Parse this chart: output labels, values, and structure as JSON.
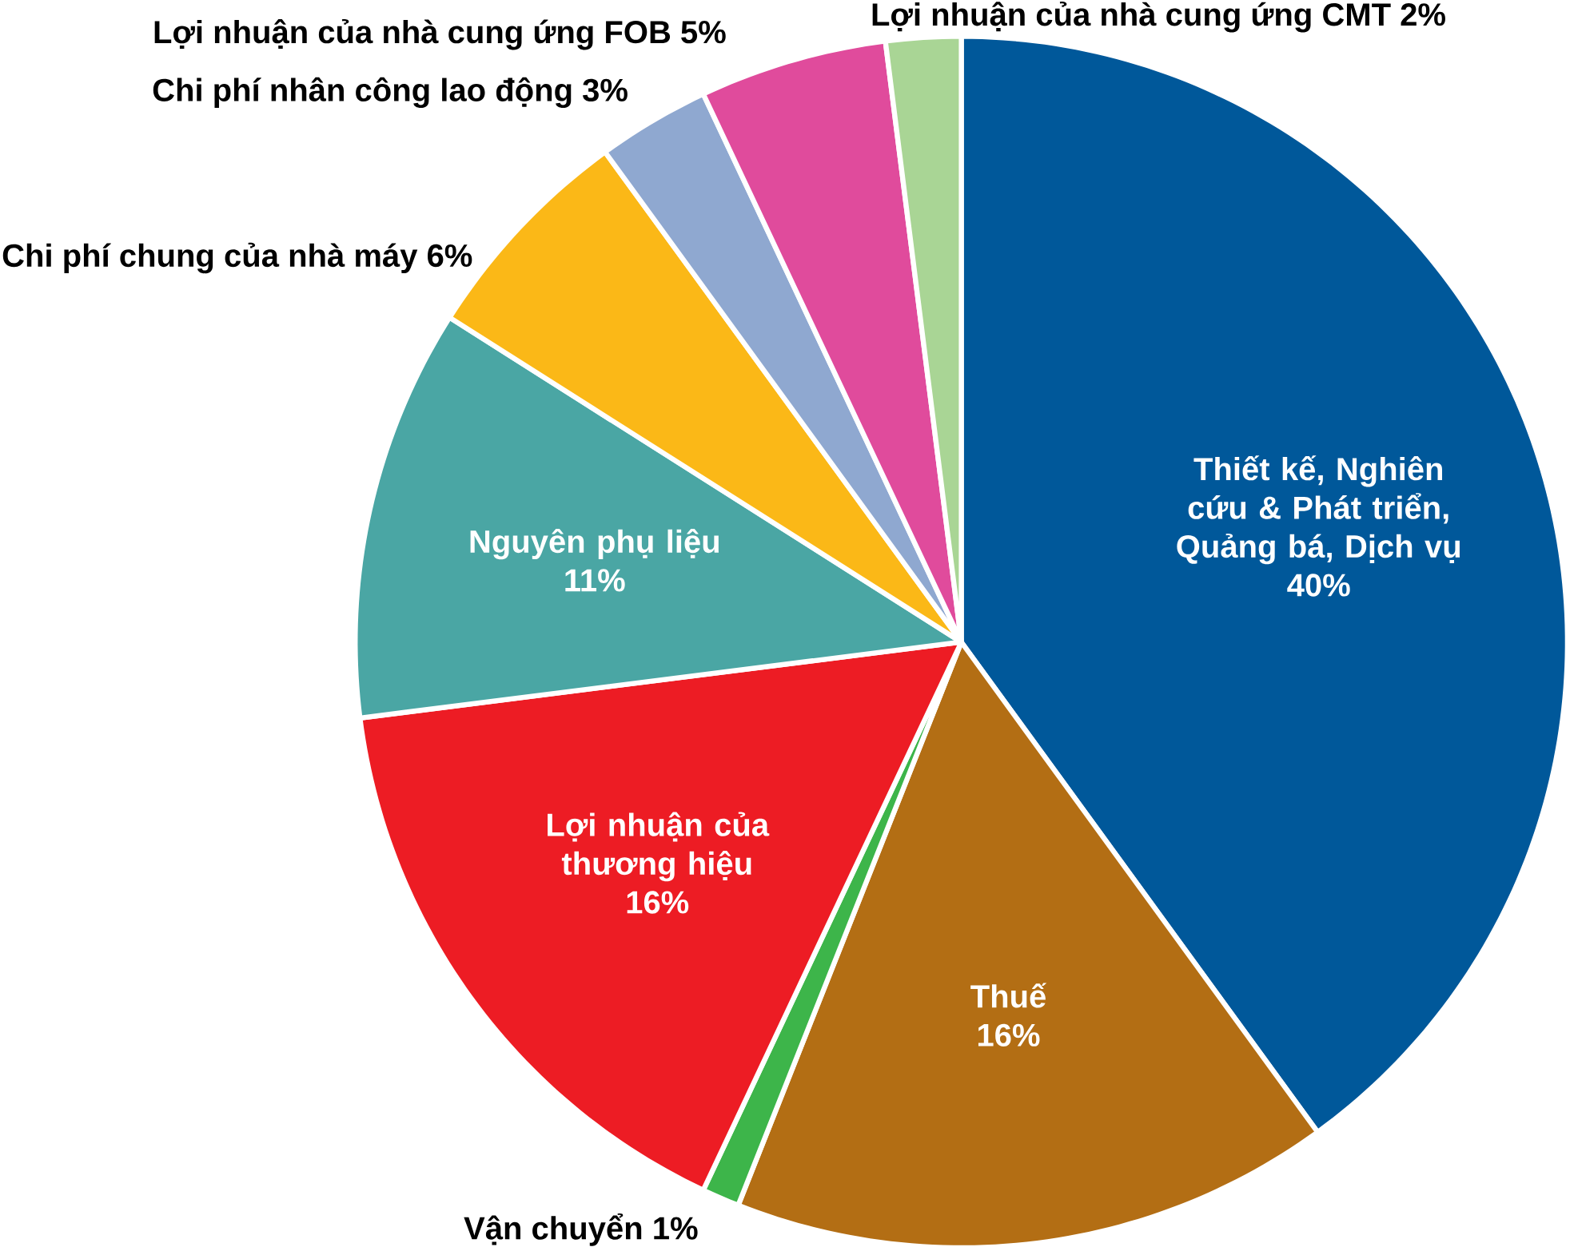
{
  "chart_data": {
    "type": "pie",
    "categories": [
      "Thiết kế, Nghiên cứu & Phát triển, Quảng bá, Dịch vụ",
      "Thuế",
      "Vận chuyển",
      "Lợi nhuận của thương hiệu",
      "Nguyên phụ liệu",
      "Chi phí chung của nhà máy",
      "Chi phí nhân công lao động",
      "Lợi nhuận của nhà cung ứng FOB",
      "Lợi nhuận của nhà cung ứng CMT"
    ],
    "values": [
      40,
      16,
      1,
      16,
      11,
      6,
      3,
      5,
      2
    ],
    "value_labels": [
      "40%",
      "16%",
      "1%",
      "16%",
      "11%",
      "6%",
      "3%",
      "5%",
      "2%"
    ],
    "colors": [
      "#00589a",
      "#b36e14",
      "#3db54a",
      "#ed1c24",
      "#4aa6a4",
      "#fbb817",
      "#8fa8d0",
      "#e04b9c",
      "#a9d595"
    ]
  }
}
